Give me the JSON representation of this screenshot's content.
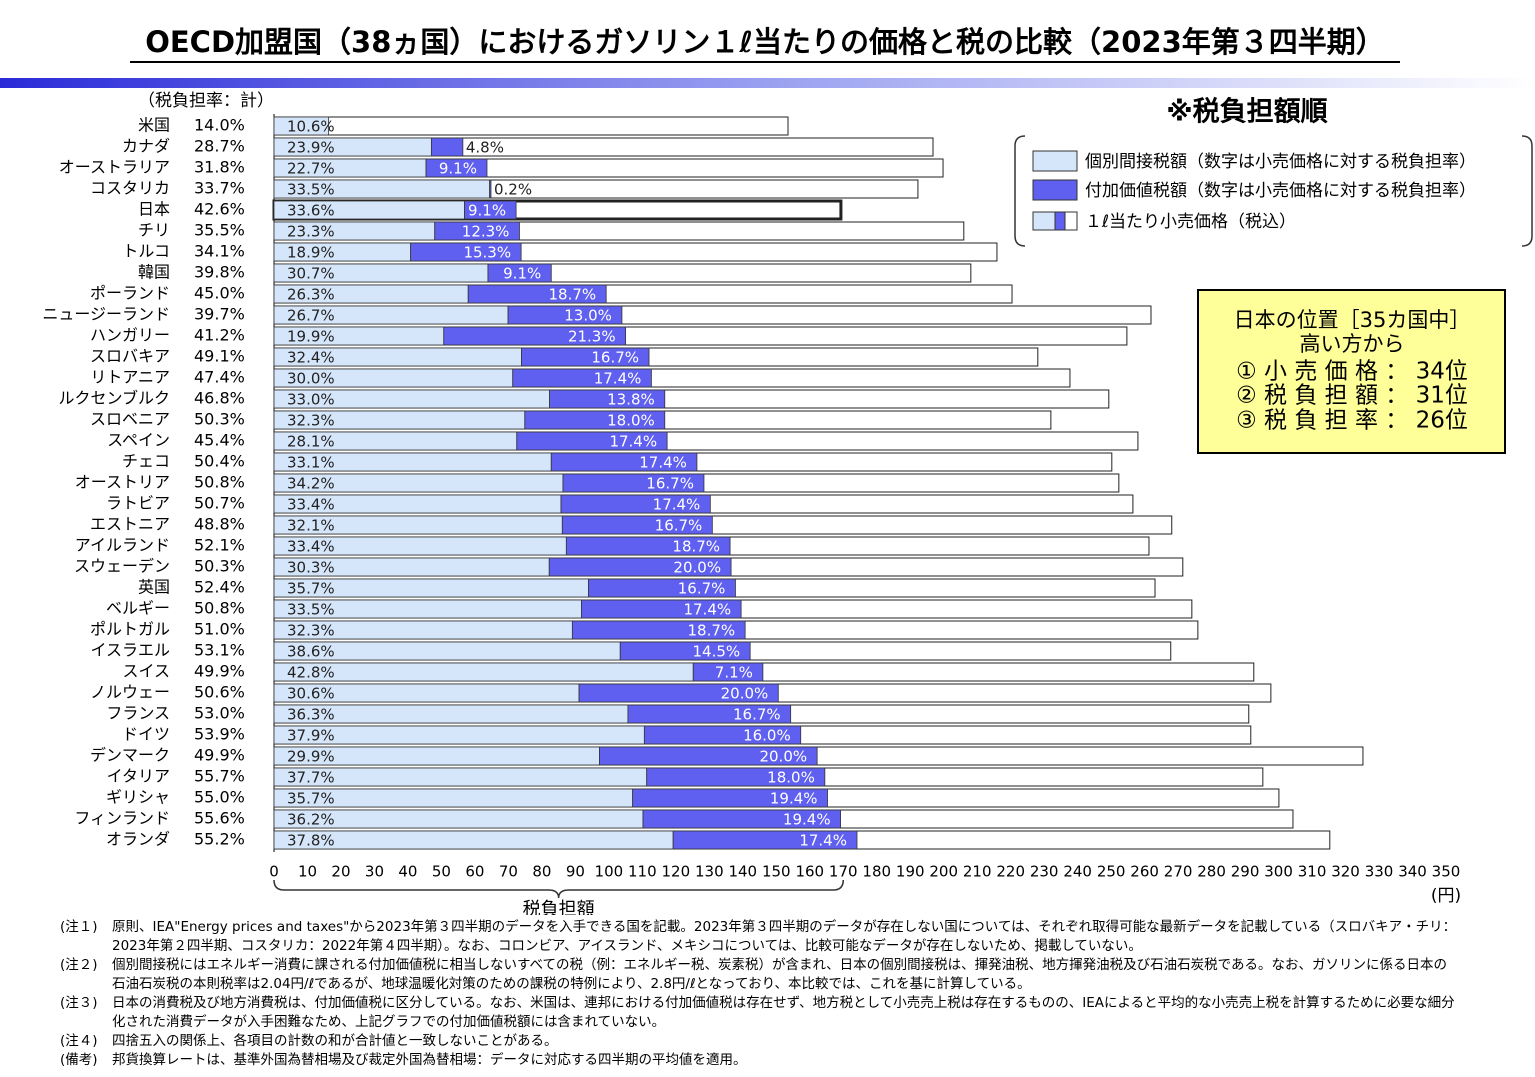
{
  "chart_data": {
    "type": "bar",
    "orientation": "horizontal",
    "title": "OECD加盟国（38ヵ国）におけるガソリン１ℓ当たりの価格と税の比較（2023年第３四半期）",
    "sort_note": "※税負担額順",
    "rate_header": "（税負担率：計）",
    "categories": [
      "米国",
      "カナダ",
      "オーストラリア",
      "コスタリカ",
      "日本",
      "チリ",
      "トルコ",
      "韓国",
      "ポーランド",
      "ニュージーランド",
      "ハンガリー",
      "スロバキア",
      "リトアニア",
      "ルクセンブルク",
      "スロベニア",
      "スペイン",
      "チェコ",
      "オーストリア",
      "ラトビア",
      "エストニア",
      "アイルランド",
      "スウェーデン",
      "英国",
      "ベルギー",
      "ポルトガル",
      "イスラエル",
      "スイス",
      "ノルウェー",
      "フランス",
      "ドイツ",
      "デンマーク",
      "イタリア",
      "ギリシャ",
      "フィンランド",
      "オランダ"
    ],
    "total_rate_labels": [
      "14.0%",
      "28.7%",
      "31.8%",
      "33.7%",
      "42.6%",
      "35.5%",
      "34.1%",
      "39.8%",
      "45.0%",
      "39.7%",
      "41.2%",
      "49.1%",
      "47.4%",
      "46.8%",
      "50.3%",
      "45.4%",
      "50.4%",
      "50.8%",
      "50.7%",
      "48.8%",
      "52.1%",
      "50.3%",
      "52.4%",
      "50.8%",
      "51.0%",
      "53.1%",
      "49.9%",
      "50.6%",
      "53.0%",
      "53.9%",
      "49.9%",
      "55.7%",
      "55.0%",
      "55.6%",
      "55.2%"
    ],
    "series": [
      {
        "name": "個別間接税額（数字は小売価格に対する税負担率）",
        "color": "#d5e5fa",
        "values": [
          16.3,
          47.0,
          45.4,
          64.4,
          56.9,
          48.0,
          40.8,
          63.9,
          58.0,
          69.9,
          50.7,
          73.9,
          71.3,
          82.3,
          74.9,
          72.5,
          82.8,
          86.3,
          85.7,
          86.1,
          87.3,
          82.2,
          93.9,
          91.8,
          89.1,
          103.4,
          125.2,
          91.1,
          105.7,
          110.6,
          97.2,
          111.3,
          107.1,
          110.2,
          119.2
        ],
        "value_labels": [
          "10.6%",
          "23.9%",
          "22.7%",
          "33.5%",
          "33.6%",
          "23.3%",
          "18.9%",
          "30.7%",
          "26.3%",
          "26.7%",
          "19.9%",
          "32.4%",
          "30.0%",
          "33.0%",
          "32.3%",
          "28.1%",
          "33.1%",
          "34.2%",
          "33.4%",
          "32.1%",
          "33.4%",
          "30.3%",
          "35.7%",
          "33.5%",
          "32.3%",
          "38.6%",
          "42.8%",
          "30.6%",
          "36.3%",
          "37.9%",
          "29.9%",
          "37.7%",
          "35.7%",
          "36.2%",
          "37.8%"
        ]
      },
      {
        "name": "付加価値税額（数字は小売価格に対する税負担率）",
        "color": "#5f5ff0",
        "values": [
          null,
          9.4,
          18.2,
          0.4,
          15.4,
          25.3,
          33.0,
          18.9,
          41.2,
          34.0,
          54.3,
          38.1,
          41.4,
          34.4,
          41.8,
          44.9,
          43.5,
          42.1,
          44.6,
          44.8,
          48.9,
          54.3,
          43.9,
          47.7,
          51.6,
          38.8,
          20.8,
          59.5,
          48.6,
          46.7,
          65.0,
          53.2,
          58.2,
          59.0,
          54.9
        ],
        "value_labels": [
          null,
          "4.8%",
          "9.1%",
          "0.2%",
          "9.1%",
          "12.3%",
          "15.3%",
          "9.1%",
          "18.7%",
          "13.0%",
          "21.3%",
          "16.7%",
          "17.4%",
          "13.8%",
          "18.0%",
          "17.4%",
          "17.4%",
          "16.7%",
          "17.4%",
          "16.7%",
          "18.7%",
          "20.0%",
          "16.7%",
          "17.4%",
          "18.7%",
          "14.5%",
          "7.1%",
          "20.0%",
          "16.7%",
          "16.0%",
          "20.0%",
          "18.0%",
          "19.4%",
          "19.4%",
          "17.4%"
        ]
      },
      {
        "name": "１ℓ当たり小売価格（税込）",
        "color": "#ffffff",
        "values": [
          153.5,
          196.8,
          199.8,
          192.3,
          169.3,
          206.0,
          215.9,
          208.1,
          220.4,
          261.9,
          254.7,
          228.1,
          237.7,
          249.3,
          232.0,
          258.0,
          250.2,
          252.3,
          256.5,
          268.1,
          261.3,
          271.4,
          263.1,
          274.1,
          275.9,
          267.8,
          292.6,
          297.7,
          291.1,
          291.7,
          325.2,
          295.3,
          300.1,
          304.3,
          315.3
        ]
      }
    ],
    "xlim": [
      0,
      350
    ],
    "xticks": [
      0,
      10,
      20,
      30,
      40,
      50,
      60,
      70,
      80,
      90,
      100,
      110,
      120,
      130,
      140,
      150,
      160,
      170,
      180,
      190,
      200,
      210,
      220,
      230,
      240,
      250,
      260,
      270,
      280,
      290,
      300,
      310,
      320,
      330,
      340,
      350
    ],
    "x_label": "税負担額",
    "x_label_span": [
      0,
      170
    ],
    "x_unit": "(円)",
    "grid": false,
    "japan_box": [
      "日本の位置［35カ国中］",
      "高い方から",
      "① 小 売 価 格 ： 34位",
      "② 税 負 担 額 ： 31位",
      "③ 税 負 担 率 ： 26位"
    ]
  },
  "notes": [
    {
      "label": "(注１)",
      "text": "原則、IEA\"Energy prices and taxes\"から2023年第３四半期のデータを入手できる国を記載。2023年第３四半期のデータが存在しない国については、それぞれ取得可能な最新データを記載している（スロバキア・チリ：2023年第２四半期、コスタリカ：2022年第４四半期）。なお、コロンビア、アイスランド、メキシコについては、比較可能なデータが存在しないため、掲載していない。"
    },
    {
      "label": "(注２)",
      "text": "個別間接税にはエネルギー消費に課される付加価値税に相当しないすべての税（例：エネルギー税、炭素税）が含まれ、日本の個別間接税は、揮発油税、地方揮発油税及び石油石炭税である。なお、ガソリンに係る日本の石油石炭税の本則税率は2.04円/ℓであるが、地球温暖化対策のための課税の特例により、2.8円/ℓとなっており、本比較では、これを基に計算している。"
    },
    {
      "label": "(注３)",
      "text": "日本の消費税及び地方消費税は、付加価値税に区分している。なお、米国は、連邦における付加価値税は存在せず、地方税として小売売上税は存在するものの、IEAによると平均的な小売売上税を計算するために必要な細分化された消費データが入手困難なため、上記グラフでの付加価値税額には含まれていない。"
    },
    {
      "label": "(注４)",
      "text": "四捨五入の関係上、各項目の計数の和が合計値と一致しないことがある。"
    },
    {
      "label": "(備考)",
      "text": "邦貨換算レートは、基準外国為替相場及び裁定外国為替相場：データに対応する四半期の平均値を適用。"
    }
  ]
}
